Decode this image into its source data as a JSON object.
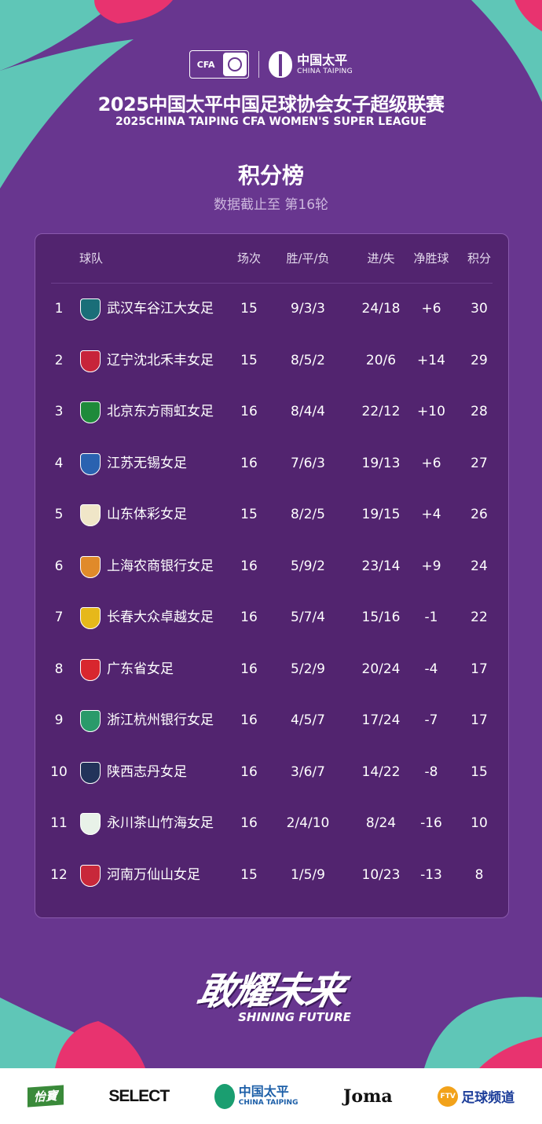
{
  "colors": {
    "background": "#68368f",
    "panel": "#52246f",
    "teal": "#5fc6b7",
    "pink": "#e8336f"
  },
  "header": {
    "cfa_logo": "CFA",
    "sponsor_logo_cn": "中国太平",
    "sponsor_logo_en": "CHINA TAIPING",
    "title": "2025中国太平中国足球协会女子超级联赛",
    "subtitle": "2025CHINA TAIPING CFA WOMEN'S SUPER LEAGUE",
    "heading": "积分榜",
    "as_of": "数据截止至 第16轮"
  },
  "table": {
    "columns": {
      "team": "球队",
      "played": "场次",
      "wdl": "胜/平/负",
      "gfga": "进/失",
      "gd": "净胜球",
      "points": "积分"
    },
    "rows": [
      {
        "rank": "1",
        "team": "武汉车谷江大女足",
        "played": "15",
        "wdl": "9/3/3",
        "gfga": "24/18",
        "gd": "+6",
        "points": "30",
        "badge": "#1a6e78"
      },
      {
        "rank": "2",
        "team": "辽宁沈北禾丰女足",
        "played": "15",
        "wdl": "8/5/2",
        "gfga": "20/6",
        "gd": "+14",
        "points": "29",
        "badge": "#c7243a"
      },
      {
        "rank": "3",
        "team": "北京东方雨虹女足",
        "played": "16",
        "wdl": "8/4/4",
        "gfga": "22/12",
        "gd": "+10",
        "points": "28",
        "badge": "#1e8a3a"
      },
      {
        "rank": "4",
        "team": "江苏无锡女足",
        "played": "16",
        "wdl": "7/6/3",
        "gfga": "19/13",
        "gd": "+6",
        "points": "27",
        "badge": "#2a62b0"
      },
      {
        "rank": "5",
        "team": "山东体彩女足",
        "played": "15",
        "wdl": "8/2/5",
        "gfga": "19/15",
        "gd": "+4",
        "points": "26",
        "badge": "#f0e6c8"
      },
      {
        "rank": "6",
        "team": "上海农商银行女足",
        "played": "16",
        "wdl": "5/9/2",
        "gfga": "23/14",
        "gd": "+9",
        "points": "24",
        "badge": "#e08a2a"
      },
      {
        "rank": "7",
        "team": "长春大众卓越女足",
        "played": "16",
        "wdl": "5/7/4",
        "gfga": "15/16",
        "gd": "-1",
        "points": "22",
        "badge": "#e6b81a"
      },
      {
        "rank": "8",
        "team": "广东省女足",
        "played": "16",
        "wdl": "5/2/9",
        "gfga": "20/24",
        "gd": "-4",
        "points": "17",
        "badge": "#d8262e"
      },
      {
        "rank": "9",
        "team": "浙江杭州银行女足",
        "played": "16",
        "wdl": "4/5/7",
        "gfga": "17/24",
        "gd": "-7",
        "points": "17",
        "badge": "#2a9a6a"
      },
      {
        "rank": "10",
        "team": "陕西志丹女足",
        "played": "16",
        "wdl": "3/6/7",
        "gfga": "14/22",
        "gd": "-8",
        "points": "15",
        "badge": "#22335a"
      },
      {
        "rank": "11",
        "team": "永川茶山竹海女足",
        "played": "16",
        "wdl": "2/4/10",
        "gfga": "8/24",
        "gd": "-16",
        "points": "10",
        "badge": "#e8f2e8"
      },
      {
        "rank": "12",
        "team": "河南万仙山女足",
        "played": "15",
        "wdl": "1/5/9",
        "gfga": "10/23",
        "gd": "-13",
        "points": "8",
        "badge": "#c8283a"
      }
    ]
  },
  "slogan": {
    "zh": "敢耀未来",
    "en": "SHINING FUTURE"
  },
  "sponsors": {
    "s1": "怡寶",
    "s2": "SELECT",
    "s3_cn": "中国太平",
    "s3_en": "CHINA TAIPING",
    "s4": "Joma",
    "s5_icon": "FTV",
    "s5": "足球频道"
  }
}
